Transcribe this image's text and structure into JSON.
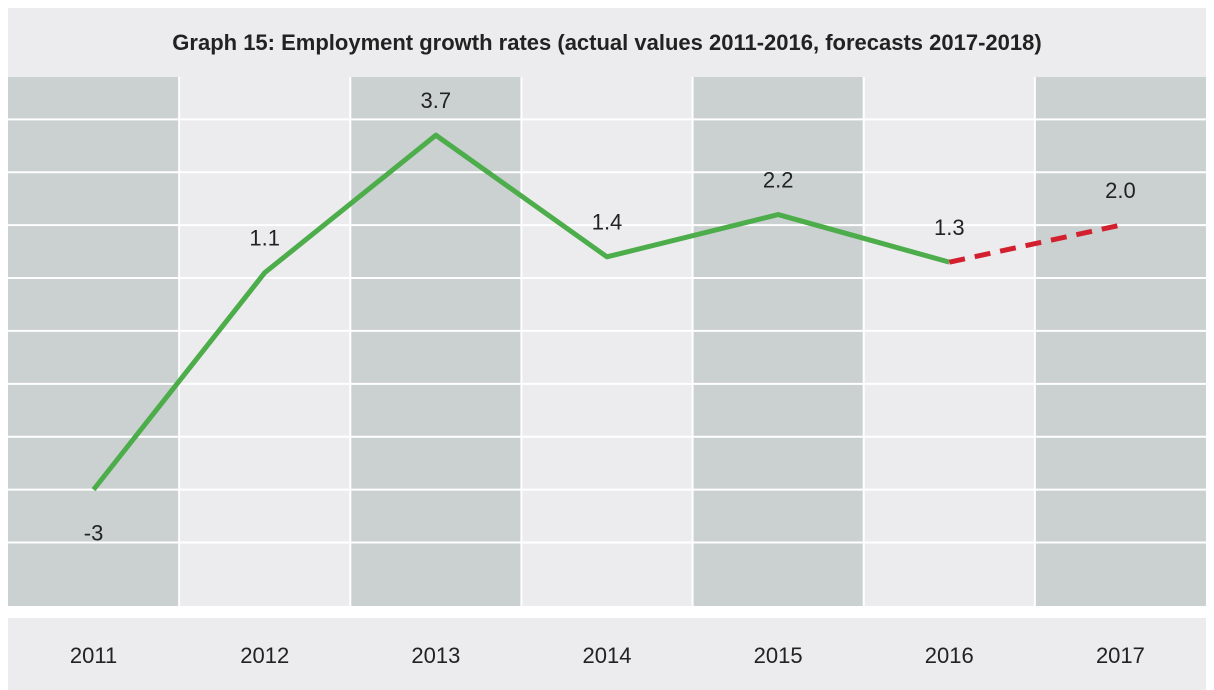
{
  "chart_data": {
    "type": "line",
    "title": "Graph 15: Employment growth rates (actual values 2011-2016, forecasts 2017-2018)",
    "categories": [
      "2011",
      "2012",
      "2013",
      "2014",
      "2015",
      "2016",
      "2017"
    ],
    "series": [
      {
        "color": "#4cad4a",
        "dashed": false,
        "values": [
          -3,
          1.1,
          3.7,
          1.4,
          2.2,
          1.3,
          null
        ]
      },
      {
        "color": "#d3202f",
        "dashed": true,
        "values": [
          null,
          null,
          null,
          null,
          null,
          1.3,
          2.0
        ]
      }
    ],
    "value_labels": [
      "-3",
      "1.1",
      "3.7",
      "1.4",
      "2.2",
      "1.3",
      "2.0"
    ],
    "ylim": [
      -5.2,
      4.8
    ],
    "yticks": [
      -4,
      -3,
      -2,
      -1,
      0,
      1,
      2,
      3,
      4
    ],
    "grid": true
  }
}
